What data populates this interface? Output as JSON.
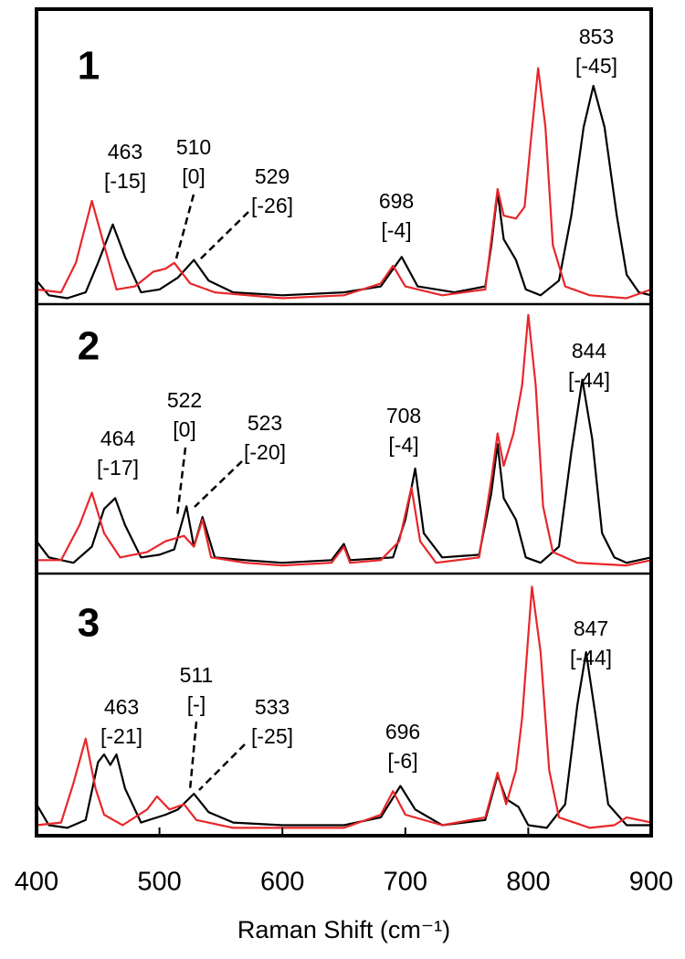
{
  "chart_data": [
    {
      "type": "line",
      "panel": "1",
      "xlim": [
        400,
        900
      ],
      "ylim": [
        0,
        100
      ],
      "series": [
        {
          "color": "#000000",
          "x": [
            400,
            410,
            425,
            440,
            450,
            462,
            472,
            485,
            500,
            515,
            528,
            540,
            560,
            600,
            650,
            680,
            697,
            710,
            740,
            765,
            770,
            775,
            780,
            790,
            798,
            810,
            825,
            835,
            845,
            853,
            862,
            872,
            880,
            890,
            900
          ],
          "values": [
            8,
            3,
            2,
            4,
            14,
            27,
            16,
            4,
            5,
            9,
            15,
            8,
            4,
            3,
            4,
            6,
            16,
            6,
            4,
            6,
            20,
            38,
            22,
            15,
            5,
            3,
            8,
            30,
            60,
            74,
            60,
            30,
            10,
            4,
            3
          ]
        },
        {
          "color": "#e8262a",
          "x": [
            400,
            420,
            432,
            445,
            455,
            465,
            480,
            495,
            505,
            512,
            525,
            545,
            600,
            650,
            680,
            690,
            700,
            730,
            765,
            770,
            775,
            780,
            790,
            797,
            802,
            808,
            814,
            820,
            830,
            850,
            880,
            900
          ],
          "values": [
            5,
            4,
            14,
            35,
            20,
            5,
            6,
            11,
            12,
            14,
            7,
            4,
            2,
            3,
            7,
            13,
            6,
            3,
            5,
            22,
            39,
            30,
            29,
            33,
            55,
            80,
            60,
            20,
            6,
            3,
            2,
            5
          ]
        }
      ],
      "annotations": [
        [
          "463",
          "[-15]"
        ],
        [
          "510",
          "[0]"
        ],
        [
          "529",
          "[-26]"
        ],
        [
          "698",
          "[-4]"
        ],
        [
          "853",
          "[-45]"
        ]
      ]
    },
    {
      "type": "line",
      "panel": "2",
      "xlim": [
        400,
        900
      ],
      "ylim": [
        0,
        100
      ],
      "series": [
        {
          "color": "#000000",
          "x": [
            400,
            410,
            430,
            445,
            455,
            464,
            472,
            485,
            500,
            512,
            522,
            528,
            535,
            545,
            570,
            600,
            640,
            650,
            655,
            690,
            700,
            708,
            715,
            730,
            760,
            770,
            775,
            780,
            790,
            798,
            810,
            825,
            835,
            844,
            852,
            860,
            870,
            880,
            900
          ],
          "values": [
            12,
            6,
            4,
            10,
            24,
            28,
            18,
            6,
            7,
            9,
            25,
            10,
            21,
            6,
            5,
            4,
            5,
            11,
            5,
            6,
            20,
            39,
            15,
            6,
            7,
            30,
            48,
            28,
            20,
            6,
            4,
            10,
            45,
            72,
            50,
            15,
            6,
            4,
            6
          ]
        },
        {
          "color": "#e8262a",
          "x": [
            400,
            420,
            435,
            445,
            455,
            468,
            490,
            505,
            520,
            528,
            535,
            542,
            570,
            600,
            640,
            650,
            655,
            680,
            695,
            705,
            712,
            725,
            760,
            770,
            775,
            780,
            788,
            795,
            800,
            806,
            812,
            820,
            840,
            880,
            900
          ],
          "values": [
            5,
            5,
            18,
            30,
            15,
            6,
            8,
            12,
            14,
            10,
            20,
            6,
            4,
            3,
            4,
            10,
            4,
            5,
            12,
            32,
            12,
            4,
            6,
            35,
            52,
            40,
            52,
            70,
            96,
            70,
            25,
            8,
            4,
            3,
            5
          ]
        }
      ],
      "annotations": [
        [
          "464",
          "[-17]"
        ],
        [
          "522",
          "[0]"
        ],
        [
          "523",
          "[-20]"
        ],
        [
          "708",
          "[-4]"
        ],
        [
          "844",
          "[-44]"
        ]
      ]
    },
    {
      "type": "line",
      "panel": "3",
      "xlim": [
        400,
        900
      ],
      "ylim": [
        0,
        100
      ],
      "xticks": [
        400,
        500,
        600,
        700,
        800,
        900
      ],
      "xlabel": "Raman Shift (cm⁻¹)",
      "series": [
        {
          "color": "#000000",
          "x": [
            400,
            410,
            425,
            440,
            450,
            455,
            460,
            465,
            472,
            485,
            505,
            515,
            528,
            540,
            560,
            600,
            650,
            680,
            696,
            708,
            730,
            765,
            775,
            782,
            792,
            800,
            815,
            830,
            840,
            847,
            855,
            865,
            880,
            900
          ],
          "values": [
            12,
            4,
            3,
            6,
            28,
            31,
            27,
            31,
            18,
            5,
            8,
            10,
            16,
            9,
            5,
            4,
            4,
            7,
            19,
            10,
            4,
            6,
            23,
            14,
            11,
            4,
            3,
            12,
            50,
            70,
            45,
            12,
            4,
            4
          ]
        },
        {
          "color": "#e8262a",
          "x": [
            400,
            420,
            430,
            440,
            448,
            455,
            470,
            490,
            498,
            508,
            520,
            530,
            560,
            650,
            680,
            690,
            700,
            730,
            765,
            775,
            782,
            790,
            795,
            803,
            810,
            817,
            825,
            850,
            870,
            880,
            900
          ],
          "values": [
            4,
            5,
            20,
            37,
            18,
            8,
            4,
            10,
            15,
            10,
            12,
            6,
            3,
            3,
            8,
            17,
            8,
            4,
            7,
            24,
            12,
            25,
            45,
            95,
            70,
            25,
            7,
            3,
            4,
            7,
            5
          ]
        }
      ],
      "annotations": [
        [
          "463",
          "[-21]"
        ],
        [
          "511",
          "[-]"
        ],
        [
          "533",
          "[-25]"
        ],
        [
          "696",
          "[-6]"
        ],
        [
          "847",
          "[-44]"
        ]
      ]
    }
  ]
}
